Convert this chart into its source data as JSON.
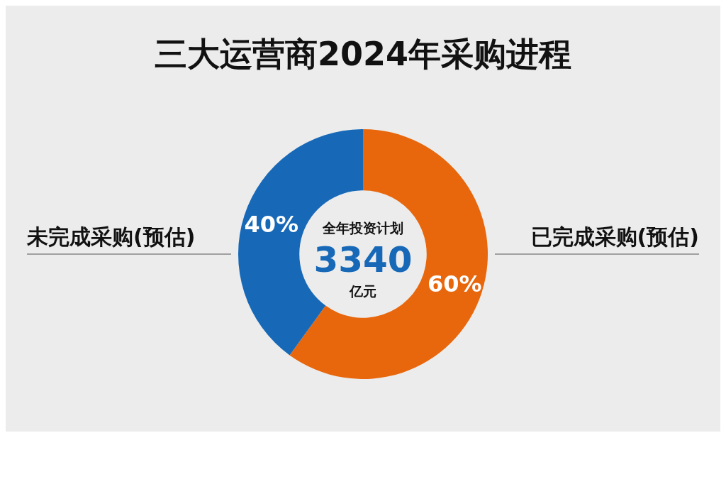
{
  "chart_data": {
    "type": "donut",
    "title": "三大运营商2024年采购进程",
    "categories": [
      "已完成采购(预估)",
      "未完成采购(预估)"
    ],
    "values": [
      60,
      40
    ],
    "colors": [
      "#e8670c",
      "#1769b8"
    ],
    "value_labels": [
      "60%",
      "40%"
    ],
    "legend": false,
    "annotations": [
      "全年投资计划",
      "3340",
      "亿元"
    ]
  }
}
